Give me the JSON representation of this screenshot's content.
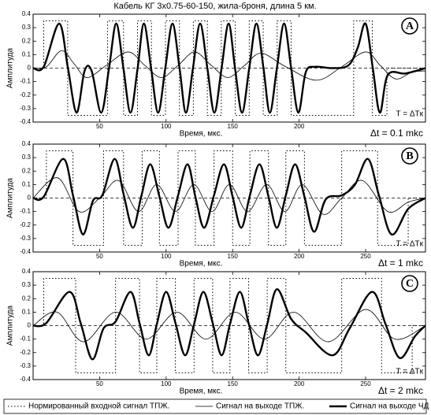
{
  "chart_data": [
    {
      "type": "line",
      "title": "Кабель КГ 3x0.75-60-150, жила-броня, длина 5 км.",
      "panel_label": "A",
      "ylabel": "Амплитуда",
      "xlabel": "Время, мкс.",
      "annotation": "T = ΔTк",
      "dt_label": "Δt = 0.1 mkc",
      "xlim": [
        0,
        295
      ],
      "ylim": [
        -0.4,
        0.4
      ],
      "xticks": [
        50,
        100,
        150,
        200
      ],
      "yticks": [
        0.4,
        0.3,
        0.2,
        0.1,
        0,
        -0.1,
        -0.2,
        -0.3,
        -0.4
      ],
      "zero_line": true,
      "legend": "bottom",
      "series": [
        {
          "name": "Нормированный входной сигнал ТПЖ.",
          "color": "#000000",
          "dash": "dotted",
          "width": 1,
          "smooth": false,
          "x": [
            0,
            8,
            8,
            26,
            26,
            56,
            56,
            68,
            68,
            78.5,
            78.5,
            89,
            89,
            99.5,
            99.5,
            110,
            110,
            120.5,
            120.5,
            131,
            131,
            141.5,
            141.5,
            152,
            152,
            162.5,
            162.5,
            173,
            173,
            183.5,
            183.5,
            194,
            194,
            241,
            241,
            255,
            255,
            266,
            266,
            295
          ],
          "values": [
            0,
            0,
            0.35,
            0.35,
            -0.35,
            -0.35,
            0.35,
            0.35,
            -0.35,
            -0.35,
            0.35,
            0.35,
            -0.35,
            -0.35,
            0.35,
            0.35,
            -0.35,
            -0.35,
            0.35,
            0.35,
            -0.35,
            -0.35,
            0.35,
            0.35,
            -0.35,
            -0.35,
            0.35,
            0.35,
            -0.35,
            -0.35,
            0.35,
            0.35,
            -0.35,
            -0.35,
            0.35,
            0.35,
            -0.35,
            -0.35,
            0,
            0
          ]
        },
        {
          "name": "Сигнал на выходе ТПЖ.",
          "color": "#000000",
          "dash": "solid",
          "width": 0.8,
          "smooth": true,
          "x": [
            0,
            10,
            21.4,
            31,
            40.5,
            55,
            71.4,
            84,
            96.4,
            109,
            121.4,
            134,
            146.4,
            159,
            171.4,
            190,
            213,
            232,
            250,
            261,
            272.6,
            285,
            295
          ],
          "values": [
            0,
            0.01,
            0.13,
            0.03,
            -0.07,
            0.02,
            0.12,
            0.02,
            -0.07,
            0.02,
            0.12,
            0.02,
            -0.07,
            0.02,
            0.11,
            0.01,
            -0.09,
            0.01,
            0.12,
            0.02,
            -0.08,
            -0.03,
            -0.02
          ]
        },
        {
          "name": "Сигнал на выходе  ЧД",
          "color": "#000000",
          "dash": "solid",
          "width": 2.4,
          "smooth": true,
          "x": [
            0,
            8,
            19.6,
            26.2,
            32.7,
            38.7,
            44,
            51.2,
            57.1,
            62.5,
            67.9,
            73.2,
            78.6,
            83.3,
            88.7,
            94,
            99.4,
            104.8,
            110.1,
            114.9,
            120.2,
            125.6,
            131,
            136.3,
            141.7,
            147,
            151.8,
            157.1,
            162.5,
            167.9,
            173.2,
            178,
            183.3,
            188.7,
            194,
            199.4,
            205,
            212,
            225,
            237,
            244,
            250,
            255.4,
            260.7,
            266.7,
            280,
            295
          ],
          "values": [
            0,
            0.01,
            0.33,
            0,
            -0.33,
            -0.02,
            -0.02,
            -0.33,
            0,
            0.33,
            0,
            -0.33,
            0,
            0.33,
            0,
            -0.33,
            0,
            0.33,
            0,
            -0.33,
            0,
            0.33,
            0,
            -0.33,
            0,
            0.33,
            0,
            -0.33,
            0,
            0.33,
            0,
            -0.33,
            0,
            0.33,
            0,
            -0.33,
            -0.03,
            0.01,
            0,
            0.02,
            0.15,
            0.33,
            0,
            -0.33,
            -0.05,
            -0.04,
            0
          ]
        }
      ]
    },
    {
      "type": "line",
      "panel_label": "B",
      "ylabel": "Амплитуда",
      "xlabel": "Время, мкс.",
      "annotation": "T = ΔTк",
      "dt_label": "Δt = 1 mkc",
      "xlim": [
        0,
        295
      ],
      "ylim": [
        -0.4,
        0.4
      ],
      "xticks": [
        50,
        100,
        150,
        200,
        250
      ],
      "yticks": [
        0.4,
        0.3,
        0.2,
        0.1,
        0,
        -0.1,
        -0.2,
        -0.3,
        -0.4
      ],
      "zero_line": true,
      "series": [
        {
          "color": "#000000",
          "dash": "dotted",
          "width": 1,
          "smooth": false,
          "x": [
            0,
            10,
            10,
            30,
            30,
            53,
            53,
            68,
            68,
            82,
            82,
            95,
            95,
            109,
            109,
            122,
            122,
            136,
            136,
            150,
            150,
            163,
            163,
            177,
            177,
            190,
            190,
            204,
            204,
            232,
            232,
            259,
            259,
            282,
            282,
            295
          ],
          "values": [
            0,
            0,
            0.35,
            0.35,
            -0.35,
            -0.35,
            0.35,
            0.35,
            -0.35,
            -0.35,
            0.35,
            0.35,
            -0.35,
            -0.35,
            0.35,
            0.35,
            -0.35,
            -0.35,
            0.35,
            0.35,
            -0.35,
            -0.35,
            0.35,
            0.35,
            -0.35,
            -0.35,
            0.35,
            0.35,
            -0.35,
            -0.35,
            0.35,
            0.35,
            -0.35,
            -0.35,
            0,
            0
          ]
        },
        {
          "color": "#000000",
          "dash": "solid",
          "width": 0.8,
          "smooth": true,
          "x": [
            0,
            18.5,
            34.5,
            50,
            64.3,
            79.2,
            92.9,
            107.1,
            120.8,
            134.5,
            147.6,
            161.3,
            175.6,
            189.3,
            202.4,
            217.9,
            232,
            247.6,
            266.7,
            282,
            295
          ],
          "values": [
            0,
            0.15,
            -0.1,
            0,
            0.13,
            -0.1,
            0.1,
            -0.1,
            0.1,
            -0.1,
            0.1,
            -0.1,
            0.1,
            -0.1,
            0.1,
            -0.12,
            0,
            0.13,
            -0.1,
            -0.03,
            0
          ]
        },
        {
          "color": "#000000",
          "dash": "solid",
          "width": 2.4,
          "smooth": true,
          "x": [
            0,
            8,
            22.6,
            30,
            37.5,
            45,
            52,
            61.3,
            68,
            75,
            81.5,
            88.1,
            95,
            101.8,
            109,
            116.1,
            122,
            128.6,
            136,
            143.5,
            150,
            156.5,
            163,
            170.2,
            177,
            183.3,
            190,
            197,
            204,
            211.3,
            220,
            232,
            242,
            251.8,
            260,
            269.6,
            282,
            295
          ],
          "values": [
            0,
            0.01,
            0.29,
            0.02,
            -0.27,
            -0.02,
            0.02,
            0.29,
            0.03,
            -0.22,
            0.02,
            0.25,
            0.01,
            -0.22,
            0.02,
            0.25,
            0.01,
            -0.22,
            0.02,
            0.25,
            0.01,
            -0.22,
            0.02,
            0.25,
            0.01,
            -0.22,
            0.02,
            0.25,
            0.01,
            -0.25,
            -0.01,
            0.02,
            0.1,
            0.29,
            0.02,
            -0.27,
            -0.08,
            0
          ]
        }
      ]
    },
    {
      "type": "line",
      "panel_label": "C",
      "ylabel": "Амплитуда",
      "xlabel": "Время, мкс.",
      "annotation": "T = ΔTк",
      "dt_label": "Δt = 2 mkc",
      "xlim": [
        0,
        295
      ],
      "ylim": [
        -0.4,
        0.4
      ],
      "xticks": [
        50,
        100,
        150,
        200,
        250
      ],
      "yticks": [
        0.4,
        0.3,
        0.2,
        0.1,
        0,
        -0.1,
        -0.2,
        -0.3,
        -0.4
      ],
      "zero_line": true,
      "series": [
        {
          "color": "#000000",
          "dash": "dotted",
          "width": 1,
          "smooth": false,
          "x": [
            0,
            8,
            8,
            32,
            32,
            62,
            62,
            80,
            80,
            93,
            93,
            107,
            107,
            121,
            121,
            135,
            135,
            148,
            148,
            162,
            162,
            176,
            176,
            190,
            190,
            232,
            232,
            262,
            262,
            285,
            285,
            295
          ],
          "values": [
            0,
            0,
            0.35,
            0.35,
            -0.35,
            -0.35,
            0.35,
            0.35,
            -0.35,
            -0.35,
            0.35,
            0.35,
            -0.35,
            -0.35,
            0.35,
            0.35,
            -0.35,
            -0.35,
            0.35,
            0.35,
            -0.35,
            -0.35,
            0.35,
            0.35,
            -0.35,
            -0.35,
            0.35,
            0.35,
            -0.35,
            -0.35,
            0,
            0
          ]
        },
        {
          "color": "#000000",
          "dash": "solid",
          "width": 0.8,
          "smooth": true,
          "x": [
            0,
            18,
            38,
            62,
            85,
            108,
            130,
            152,
            174,
            196,
            222,
            250,
            272,
            295
          ],
          "values": [
            0,
            0.1,
            -0.12,
            0.1,
            -0.1,
            0.1,
            -0.1,
            0.1,
            -0.1,
            0.1,
            -0.12,
            0.12,
            -0.1,
            0
          ]
        },
        {
          "color": "#000000",
          "dash": "solid",
          "width": 2.4,
          "smooth": true,
          "x": [
            0,
            10,
            27.4,
            36,
            44.6,
            53,
            62,
            73.2,
            80,
            86.9,
            93,
            100,
            107,
            114.3,
            121,
            128,
            135,
            141.7,
            148,
            155.4,
            162,
            169,
            176,
            183.3,
            194,
            205,
            225,
            238,
            254.8,
            265,
            275.6,
            287,
            295
          ],
          "values": [
            0,
            0.02,
            0.25,
            0.01,
            -0.25,
            -0.02,
            0.03,
            0.25,
            0.02,
            -0.22,
            0.01,
            0.25,
            0.02,
            -0.22,
            0.01,
            0.25,
            0.02,
            -0.22,
            0.01,
            0.25,
            0.02,
            -0.22,
            0.01,
            0.27,
            0.05,
            -0.05,
            -0.22,
            -0.02,
            0.25,
            0.01,
            -0.24,
            -0.08,
            0
          ]
        }
      ]
    }
  ]
}
